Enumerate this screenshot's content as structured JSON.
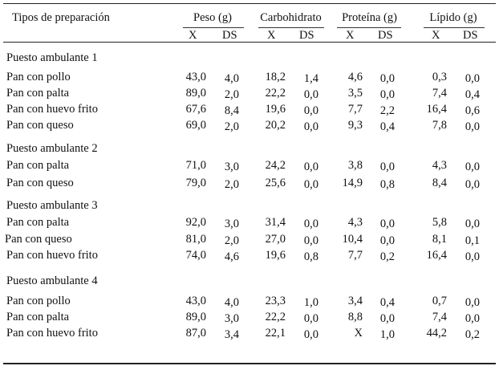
{
  "header": {
    "row_label": "Tipos de preparación",
    "groups": [
      "Peso (g)",
      "Carbohidrato",
      "Proteína (g)",
      "Lípido (g)"
    ],
    "sub": [
      "X",
      "DS",
      "X",
      "DS",
      "X",
      "DS",
      "X",
      "DS"
    ]
  },
  "sections": [
    {
      "title": "Puesto ambulante 1",
      "rows": [
        {
          "label": "Pan con pollo",
          "v": [
            "43,0",
            "4,0",
            "18,2",
            "1,4",
            "4,6",
            "0,0",
            "0,3",
            "0,0"
          ]
        },
        {
          "label": "Pan con palta",
          "v": [
            "89,0",
            "2,0",
            "22,2",
            "0,0",
            "3,5",
            "0,0",
            "7,4",
            "0,4"
          ]
        },
        {
          "label": "Pan con huevo frito",
          "v": [
            "67,6",
            "8,4",
            "19,6",
            "0,0",
            "7,7",
            "2,2",
            "16,4",
            "0,6"
          ]
        },
        {
          "label": "Pan con queso",
          "v": [
            "69,0",
            "2,0",
            "20,2",
            "0,0",
            "9,3",
            "0,4",
            "7,8",
            "0,0"
          ]
        }
      ]
    },
    {
      "title": "Puesto ambulante 2",
      "rows": [
        {
          "label": "Pan con palta",
          "v": [
            "71,0",
            "3,0",
            "24,2",
            "0,0",
            "3,8",
            "0,0",
            "4,3",
            "0,0"
          ]
        },
        {
          "label": "Pan con queso",
          "v": [
            "79,0",
            "2,0",
            "25,6",
            "0,0",
            "14,9",
            "0,8",
            "8,4",
            "0,0"
          ]
        }
      ]
    },
    {
      "title": "Puesto ambulante 3",
      "rows": [
        {
          "label": "Pan con palta",
          "v": [
            "92,0",
            "3,0",
            "31,4",
            "0,0",
            "4,3",
            "0,0",
            "5,8",
            "0,0"
          ]
        },
        {
          "label": "Pan con queso",
          "v": [
            "81,0",
            "2,0",
            "27,0",
            "0,0",
            "10,4",
            "0,0",
            "8,1",
            "0,1"
          ]
        },
        {
          "label": "Pan con huevo frito",
          "v": [
            "74,0",
            "4,6",
            "19,6",
            "0,8",
            "7,7",
            "0,2",
            "16,4",
            "0,0"
          ]
        }
      ]
    },
    {
      "title": "Puesto ambulante 4",
      "rows": [
        {
          "label": "Pan con pollo",
          "v": [
            "43,0",
            "4,0",
            "23,3",
            "1,0",
            "3,4",
            "0,4",
            "0,7",
            "0,0"
          ]
        },
        {
          "label": "Pan con palta",
          "v": [
            "89,0",
            "3,0",
            "22,2",
            "0,0",
            "8,8",
            "0,0",
            "7,4",
            "0,0"
          ]
        },
        {
          "label": "Pan con huevo frito",
          "v": [
            "87,0",
            "3,4",
            "22,1",
            "0,0",
            "X",
            "1,0",
            "44,2",
            "0,2"
          ]
        }
      ]
    }
  ]
}
